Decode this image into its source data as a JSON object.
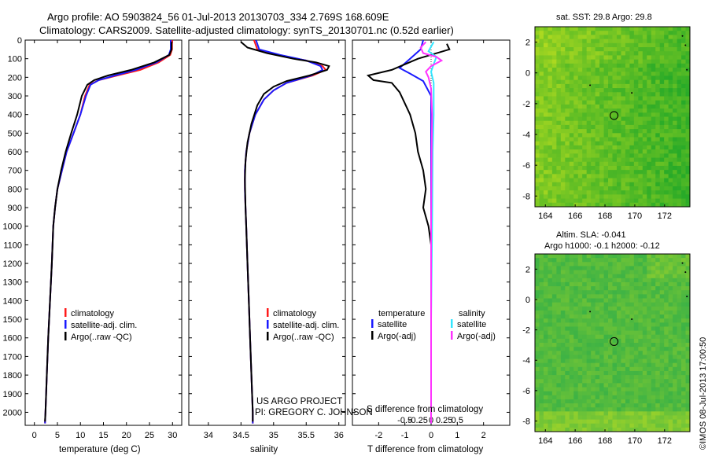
{
  "header": {
    "title_line1": "Argo profile: AO 5903824_56 01-Jul-2013 20130703_334 2.769S 168.609E",
    "title_line2": "Climatology: CARS2009. Satellite-adjusted climatology: synTS_20130701.nc (0.52d earlier)"
  },
  "colors": {
    "climatology": "#ff1a1a",
    "satellite": "#1a1aff",
    "argo": "#000000",
    "argo_salinity_diff": "#ff33ff",
    "satellite_salinity_diff": "#33e6ff"
  },
  "chart_data": [
    {
      "type": "line",
      "panel": "temperature",
      "xlabel": "temperature (deg C)",
      "ylim": [
        2070,
        0
      ],
      "xlim": [
        -2,
        32
      ],
      "xticks": [
        0,
        5,
        10,
        15,
        20,
        25,
        30
      ],
      "yticks": [
        0,
        100,
        200,
        300,
        400,
        500,
        600,
        700,
        800,
        900,
        1000,
        1100,
        1200,
        1300,
        1400,
        1500,
        1600,
        1700,
        1800,
        1900,
        2000
      ],
      "legend": [
        "climatology",
        "satellite-adj. clim.",
        "Argo(..raw -QC)"
      ],
      "series": [
        {
          "name": "climatology",
          "color": "#ff1a1a",
          "points": [
            [
              29.9,
              0
            ],
            [
              29.9,
              50
            ],
            [
              29.5,
              80
            ],
            [
              27,
              120
            ],
            [
              23,
              160
            ],
            [
              18,
              190
            ],
            [
              14,
              215
            ],
            [
              12,
              240
            ],
            [
              11,
              300
            ],
            [
              10,
              400
            ],
            [
              8.5,
              500
            ],
            [
              7,
              600
            ],
            [
              6,
              700
            ],
            [
              5,
              800
            ],
            [
              4.5,
              900
            ],
            [
              4.1,
              1000
            ],
            [
              3.8,
              1200
            ],
            [
              3.4,
              1400
            ],
            [
              3,
              1600
            ],
            [
              2.7,
              1800
            ],
            [
              2.4,
              2000
            ],
            [
              2.3,
              2060
            ]
          ]
        },
        {
          "name": "satellite-adj. clim.",
          "color": "#1a1aff",
          "points": [
            [
              29.6,
              0
            ],
            [
              29.6,
              50
            ],
            [
              29.2,
              80
            ],
            [
              26.5,
              120
            ],
            [
              22,
              160
            ],
            [
              17.5,
              190
            ],
            [
              14,
              215
            ],
            [
              12.2,
              240
            ],
            [
              11.2,
              300
            ],
            [
              10,
              400
            ],
            [
              8.5,
              500
            ],
            [
              7,
              600
            ],
            [
              6,
              700
            ],
            [
              5,
              800
            ],
            [
              4.5,
              900
            ],
            [
              4.1,
              1000
            ],
            [
              3.8,
              1200
            ],
            [
              3.4,
              1400
            ],
            [
              3,
              1600
            ],
            [
              2.7,
              1800
            ],
            [
              2.4,
              2000
            ],
            [
              2.3,
              2060
            ]
          ]
        },
        {
          "name": "Argo(..raw -QC)",
          "color": "#000000",
          "points": [
            [
              29.8,
              10
            ],
            [
              29.8,
              50
            ],
            [
              29.3,
              80
            ],
            [
              26,
              120
            ],
            [
              21,
              160
            ],
            [
              16,
              190
            ],
            [
              13,
              215
            ],
            [
              11.5,
              240
            ],
            [
              10.3,
              300
            ],
            [
              9.3,
              400
            ],
            [
              8,
              500
            ],
            [
              6.8,
              600
            ],
            [
              5.8,
              700
            ],
            [
              5,
              800
            ],
            [
              4.5,
              900
            ],
            [
              4.1,
              1000
            ],
            [
              3.8,
              1200
            ],
            [
              3.4,
              1400
            ],
            [
              3,
              1600
            ],
            [
              2.7,
              1800
            ],
            [
              2.4,
              2000
            ],
            [
              2.3,
              2050
            ]
          ]
        }
      ]
    },
    {
      "type": "line",
      "panel": "salinity",
      "xlabel": "salinity",
      "ylim": [
        2070,
        0
      ],
      "xlim": [
        33.7,
        36.1
      ],
      "xticks": [
        34,
        34.5,
        35,
        35.5,
        36
      ],
      "legend": [
        "climatology",
        "satellite-adj. clim.",
        "Argo(..raw -QC)"
      ],
      "series": [
        {
          "name": "climatology",
          "color": "#ff1a1a",
          "points": [
            [
              34.7,
              0
            ],
            [
              34.75,
              50
            ],
            [
              35.05,
              80
            ],
            [
              35.5,
              110
            ],
            [
              35.75,
              140
            ],
            [
              35.8,
              160
            ],
            [
              35.6,
              190
            ],
            [
              35.2,
              230
            ],
            [
              35,
              270
            ],
            [
              34.85,
              320
            ],
            [
              34.72,
              400
            ],
            [
              34.63,
              500
            ],
            [
              34.58,
              600
            ],
            [
              34.56,
              700
            ],
            [
              34.56,
              800
            ],
            [
              34.57,
              900
            ],
            [
              34.58,
              1000
            ],
            [
              34.6,
              1200
            ],
            [
              34.62,
              1400
            ],
            [
              34.64,
              1600
            ],
            [
              34.66,
              1800
            ],
            [
              34.68,
              2000
            ],
            [
              34.68,
              2060
            ]
          ]
        },
        {
          "name": "satellite-adj. clim.",
          "color": "#1a1aff",
          "points": [
            [
              34.73,
              0
            ],
            [
              34.78,
              50
            ],
            [
              35.1,
              80
            ],
            [
              35.5,
              110
            ],
            [
              35.72,
              140
            ],
            [
              35.75,
              160
            ],
            [
              35.58,
              190
            ],
            [
              35.2,
              230
            ],
            [
              35,
              270
            ],
            [
              34.85,
              320
            ],
            [
              34.72,
              400
            ],
            [
              34.63,
              500
            ],
            [
              34.58,
              600
            ],
            [
              34.56,
              700
            ],
            [
              34.56,
              800
            ],
            [
              34.57,
              900
            ],
            [
              34.58,
              1000
            ],
            [
              34.6,
              1200
            ],
            [
              34.62,
              1400
            ],
            [
              34.64,
              1600
            ],
            [
              34.66,
              1800
            ],
            [
              34.68,
              2000
            ],
            [
              34.68,
              2060
            ]
          ]
        },
        {
          "name": "Argo(..raw -QC)",
          "color": "#000000",
          "points": [
            [
              34.5,
              10
            ],
            [
              34.6,
              40
            ],
            [
              34.9,
              70
            ],
            [
              35.3,
              100
            ],
            [
              35.65,
              120
            ],
            [
              35.85,
              140
            ],
            [
              35.82,
              160
            ],
            [
              35.55,
              190
            ],
            [
              35.2,
              220
            ],
            [
              35,
              250
            ],
            [
              34.85,
              290
            ],
            [
              34.75,
              350
            ],
            [
              34.66,
              450
            ],
            [
              34.6,
              550
            ],
            [
              34.57,
              650
            ],
            [
              34.56,
              750
            ],
            [
              34.57,
              900
            ],
            [
              34.58,
              1000
            ],
            [
              34.6,
              1200
            ],
            [
              34.62,
              1400
            ],
            [
              34.64,
              1600
            ],
            [
              34.66,
              1800
            ],
            [
              34.68,
              2000
            ],
            [
              34.68,
              2050
            ]
          ]
        }
      ]
    },
    {
      "type": "line",
      "panel": "differences",
      "xlabel": "T difference from climatology",
      "xlabel_top": "S difference from climatology",
      "ylim": [
        2070,
        0
      ],
      "xlim": [
        -3,
        3
      ],
      "xticks_T": [
        -2,
        -1,
        0,
        1,
        2
      ],
      "xticks_S_labels": [
        "-0.5",
        "-0.25",
        "0",
        "0.25",
        "0.5"
      ],
      "xticks_S_values": [
        -0.5,
        -0.25,
        0,
        0.25,
        0.5
      ],
      "s_scale": 2,
      "legend_headers": [
        "temperature",
        "salinity"
      ],
      "legend": [
        "satellite",
        "Argo(-adj)",
        "satellite",
        "Argo(-adj)"
      ],
      "series": [
        {
          "name": "satellite",
          "group": "temperature",
          "color": "#1a1aff",
          "points": [
            [
              -0.3,
              0
            ],
            [
              -0.4,
              50
            ],
            [
              -0.8,
              100
            ],
            [
              -1.2,
              150
            ],
            [
              -0.8,
              180
            ],
            [
              -0.3,
              220
            ],
            [
              0,
              300
            ],
            [
              0,
              2060
            ]
          ]
        },
        {
          "name": "Argo(-adj)",
          "group": "temperature",
          "color": "#000000",
          "points": [
            [
              0.6,
              20
            ],
            [
              0.7,
              50
            ],
            [
              -0.5,
              100
            ],
            [
              -1.5,
              160
            ],
            [
              -2.4,
              190
            ],
            [
              -2.2,
              215
            ],
            [
              -1.5,
              230
            ],
            [
              -1.2,
              280
            ],
            [
              -0.8,
              400
            ],
            [
              -0.6,
              500
            ],
            [
              -0.5,
              600
            ],
            [
              -0.3,
              700
            ],
            [
              -0.2,
              800
            ],
            [
              -0.3,
              900
            ],
            [
              -0.1,
              1000
            ],
            [
              0,
              1100
            ],
            [
              0,
              2060
            ]
          ]
        },
        {
          "name": "satellite",
          "group": "salinity",
          "color": "#33e6ff",
          "points": [
            [
              0.05,
              10
            ],
            [
              -0.05,
              60
            ],
            [
              0.1,
              90
            ],
            [
              0.05,
              130
            ],
            [
              0,
              170
            ],
            [
              0.05,
              230
            ],
            [
              0.05,
              400
            ],
            [
              0.03,
              600
            ],
            [
              0.02,
              1000
            ],
            [
              0,
              1500
            ],
            [
              0,
              2060
            ]
          ]
        },
        {
          "name": "Argo(-adj)",
          "group": "salinity",
          "color": "#ff33ff",
          "points": [
            [
              -0.1,
              10
            ],
            [
              -0.2,
              40
            ],
            [
              -0.15,
              70
            ],
            [
              0.1,
              90
            ],
            [
              0.2,
              110
            ],
            [
              0,
              140
            ],
            [
              -0.1,
              170
            ],
            [
              -0.05,
              200
            ],
            [
              0,
              260
            ],
            [
              0.02,
              400
            ],
            [
              0.01,
              600
            ],
            [
              0,
              1000
            ],
            [
              0,
              2060
            ]
          ]
        }
      ]
    },
    {
      "type": "heatmap",
      "panel": "sst-map",
      "title": "sat. SST: 29.8 Argo: 29.8",
      "xticks": [
        164,
        166,
        168,
        170,
        172
      ],
      "yticks": [
        2,
        0,
        -2,
        -4,
        -6,
        -8
      ],
      "xlim": [
        163.3,
        173.7
      ],
      "ylim": [
        -8.7,
        3.0
      ],
      "argo_position": [
        168.609,
        -2.769
      ]
    },
    {
      "type": "heatmap",
      "panel": "sla-map",
      "title_line1": "Altim. SLA: -0.041",
      "title_line2": "Argo h1000: -0.1 h2000: -0.12",
      "xticks": [
        164,
        166,
        168,
        170,
        172
      ],
      "yticks": [
        2,
        0,
        -2,
        -4,
        -6,
        -8
      ],
      "xlim": [
        163.3,
        173.7
      ],
      "ylim": [
        -8.7,
        3.0
      ],
      "argo_position": [
        168.609,
        -2.769
      ]
    }
  ],
  "annotations": {
    "project": "US ARGO PROJECT",
    "pi": "PI: GREGORY C. JOHNSON",
    "stamp": "©IMOS 08-Jul-2013 17:00:50"
  }
}
